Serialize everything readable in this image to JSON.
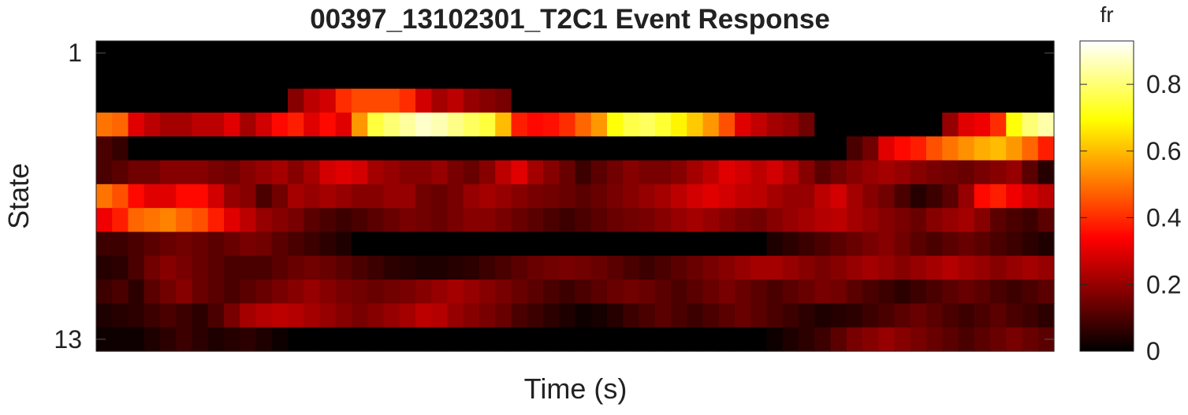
{
  "chart_data": {
    "type": "heatmap",
    "title": "00397_13102301_T2C1 Event Response",
    "xlabel": "Time (s)",
    "ylabel": "State",
    "y_tick_labels": [
      "1",
      "13"
    ],
    "n_rows": 13,
    "n_cols": 60,
    "colormap": "hot",
    "colorbar": {
      "title": "fr",
      "range": [
        0,
        0.93
      ],
      "ticks": [
        0,
        0.2,
        0.4,
        0.6,
        0.8
      ],
      "tick_labels": [
        "0",
        "0.2",
        "0.4",
        "0.6",
        "0.8"
      ]
    },
    "values": [
      [
        0,
        0,
        0,
        0,
        0,
        0,
        0,
        0,
        0,
        0,
        0,
        0,
        0,
        0,
        0,
        0,
        0,
        0,
        0,
        0,
        0,
        0,
        0,
        0,
        0,
        0,
        0,
        0,
        0,
        0,
        0,
        0,
        0,
        0,
        0,
        0,
        0,
        0,
        0,
        0,
        0,
        0,
        0,
        0,
        0,
        0,
        0,
        0,
        0,
        0,
        0,
        0,
        0,
        0,
        0,
        0,
        0,
        0,
        0,
        0
      ],
      [
        0,
        0,
        0,
        0,
        0,
        0,
        0,
        0,
        0,
        0,
        0,
        0,
        0,
        0,
        0,
        0,
        0,
        0,
        0,
        0,
        0,
        0,
        0,
        0,
        0,
        0,
        0,
        0,
        0,
        0,
        0,
        0,
        0,
        0,
        0,
        0,
        0,
        0,
        0,
        0,
        0,
        0,
        0,
        0,
        0,
        0,
        0,
        0,
        0,
        0,
        0,
        0,
        0,
        0,
        0,
        0,
        0,
        0,
        0,
        0
      ],
      [
        0,
        0,
        0,
        0,
        0,
        0,
        0,
        0,
        0,
        0,
        0,
        0,
        0.18,
        0.25,
        0.28,
        0.4,
        0.44,
        0.44,
        0.44,
        0.4,
        0.28,
        0.22,
        0.25,
        0.2,
        0.18,
        0.16,
        0,
        0,
        0,
        0,
        0,
        0,
        0,
        0,
        0,
        0,
        0,
        0,
        0,
        0,
        0,
        0,
        0,
        0,
        0,
        0,
        0,
        0,
        0,
        0,
        0,
        0,
        0,
        0,
        0,
        0,
        0,
        0,
        0,
        0
      ],
      [
        0.5,
        0.48,
        0.3,
        0.25,
        0.22,
        0.22,
        0.25,
        0.25,
        0.3,
        0.22,
        0.28,
        0.35,
        0.38,
        0.3,
        0.35,
        0.3,
        0.55,
        0.75,
        0.8,
        0.84,
        0.88,
        0.86,
        0.82,
        0.78,
        0.75,
        0.6,
        0.38,
        0.35,
        0.36,
        0.4,
        0.48,
        0.55,
        0.7,
        0.76,
        0.78,
        0.74,
        0.68,
        0.62,
        0.55,
        0.45,
        0.3,
        0.26,
        0.22,
        0.2,
        0.15,
        0,
        0,
        0,
        0,
        0,
        0,
        0,
        0,
        0.2,
        0.3,
        0.32,
        0.4,
        0.7,
        0.8,
        0.85
      ],
      [
        0.1,
        0.07,
        0,
        0,
        0,
        0,
        0,
        0,
        0,
        0,
        0,
        0,
        0,
        0,
        0,
        0,
        0,
        0,
        0,
        0,
        0,
        0,
        0,
        0,
        0,
        0,
        0,
        0,
        0,
        0,
        0,
        0,
        0,
        0,
        0,
        0,
        0,
        0,
        0,
        0,
        0,
        0,
        0,
        0,
        0,
        0,
        0,
        0.1,
        0.15,
        0.3,
        0.35,
        0.38,
        0.45,
        0.5,
        0.54,
        0.58,
        0.6,
        0.55,
        0.48,
        0.38
      ],
      [
        0.1,
        0.12,
        0.15,
        0.15,
        0.18,
        0.18,
        0.18,
        0.16,
        0.15,
        0.18,
        0.2,
        0.22,
        0.18,
        0.22,
        0.28,
        0.3,
        0.28,
        0.22,
        0.2,
        0.18,
        0.18,
        0.2,
        0.16,
        0.14,
        0.18,
        0.25,
        0.3,
        0.22,
        0.18,
        0.14,
        0.08,
        0.12,
        0.15,
        0.18,
        0.16,
        0.16,
        0.18,
        0.22,
        0.25,
        0.3,
        0.28,
        0.25,
        0.28,
        0.24,
        0.18,
        0.12,
        0.15,
        0.18,
        0.2,
        0.22,
        0.2,
        0.18,
        0.16,
        0.15,
        0.14,
        0.16,
        0.18,
        0.2,
        0.12,
        0.05
      ],
      [
        0.5,
        0.45,
        0.35,
        0.3,
        0.3,
        0.35,
        0.35,
        0.28,
        0.2,
        0.18,
        0.1,
        0.15,
        0.22,
        0.2,
        0.22,
        0.2,
        0.18,
        0.18,
        0.2,
        0.2,
        0.15,
        0.14,
        0.16,
        0.2,
        0.22,
        0.2,
        0.18,
        0.16,
        0.15,
        0.14,
        0.12,
        0.14,
        0.16,
        0.18,
        0.2,
        0.22,
        0.25,
        0.28,
        0.3,
        0.28,
        0.26,
        0.25,
        0.22,
        0.2,
        0.2,
        0.25,
        0.28,
        0.22,
        0.18,
        0.15,
        0.1,
        0.05,
        0.08,
        0.12,
        0.2,
        0.35,
        0.38,
        0.32,
        0.28,
        0.25
      ],
      [
        0.32,
        0.38,
        0.48,
        0.5,
        0.52,
        0.48,
        0.45,
        0.38,
        0.3,
        0.25,
        0.2,
        0.18,
        0.16,
        0.12,
        0.1,
        0.08,
        0.1,
        0.12,
        0.14,
        0.16,
        0.15,
        0.14,
        0.16,
        0.18,
        0.18,
        0.16,
        0.14,
        0.12,
        0.1,
        0.08,
        0.1,
        0.12,
        0.14,
        0.15,
        0.16,
        0.18,
        0.2,
        0.22,
        0.2,
        0.18,
        0.16,
        0.15,
        0.18,
        0.2,
        0.22,
        0.24,
        0.25,
        0.22,
        0.2,
        0.18,
        0.16,
        0.14,
        0.18,
        0.2,
        0.22,
        0.18,
        0.12,
        0.1,
        0.08,
        0.12
      ],
      [
        0.08,
        0.08,
        0.1,
        0.12,
        0.14,
        0.15,
        0.14,
        0.12,
        0.14,
        0.16,
        0.15,
        0.12,
        0.1,
        0.08,
        0.06,
        0.04,
        0,
        0,
        0,
        0,
        0,
        0,
        0,
        0,
        0,
        0,
        0,
        0,
        0,
        0,
        0,
        0,
        0,
        0,
        0,
        0,
        0,
        0,
        0,
        0,
        0,
        0,
        0.04,
        0.06,
        0.08,
        0.1,
        0.12,
        0.14,
        0.16,
        0.18,
        0.15,
        0.12,
        0.1,
        0.12,
        0.14,
        0.12,
        0.1,
        0.08,
        0.06,
        0.04
      ],
      [
        0.05,
        0.06,
        0.1,
        0.15,
        0.18,
        0.16,
        0.14,
        0.12,
        0.1,
        0.1,
        0.1,
        0.12,
        0.14,
        0.15,
        0.14,
        0.12,
        0.1,
        0.08,
        0.06,
        0.05,
        0.04,
        0.04,
        0.05,
        0.06,
        0.08,
        0.1,
        0.12,
        0.14,
        0.15,
        0.16,
        0.15,
        0.14,
        0.12,
        0.1,
        0.08,
        0.1,
        0.12,
        0.14,
        0.16,
        0.18,
        0.2,
        0.22,
        0.22,
        0.2,
        0.18,
        0.16,
        0.18,
        0.2,
        0.22,
        0.2,
        0.18,
        0.2,
        0.22,
        0.24,
        0.22,
        0.2,
        0.18,
        0.2,
        0.22,
        0.2
      ],
      [
        0.08,
        0.1,
        0.06,
        0.12,
        0.15,
        0.18,
        0.14,
        0.12,
        0.1,
        0.12,
        0.14,
        0.16,
        0.18,
        0.2,
        0.18,
        0.16,
        0.15,
        0.14,
        0.15,
        0.16,
        0.18,
        0.2,
        0.22,
        0.2,
        0.18,
        0.16,
        0.14,
        0.12,
        0.1,
        0.08,
        0.1,
        0.12,
        0.14,
        0.15,
        0.14,
        0.12,
        0.1,
        0.12,
        0.14,
        0.16,
        0.14,
        0.12,
        0.1,
        0.12,
        0.14,
        0.16,
        0.15,
        0.12,
        0.1,
        0.08,
        0.06,
        0.08,
        0.1,
        0.12,
        0.14,
        0.12,
        0.1,
        0.08,
        0.1,
        0.12
      ],
      [
        0.04,
        0.05,
        0.06,
        0.08,
        0.1,
        0.08,
        0.06,
        0.1,
        0.16,
        0.22,
        0.24,
        0.25,
        0.24,
        0.22,
        0.2,
        0.18,
        0.16,
        0.18,
        0.2,
        0.22,
        0.25,
        0.24,
        0.2,
        0.18,
        0.16,
        0.14,
        0.1,
        0.08,
        0.06,
        0.04,
        0.02,
        0.03,
        0.05,
        0.08,
        0.1,
        0.12,
        0.1,
        0.08,
        0.1,
        0.12,
        0.14,
        0.12,
        0.1,
        0.08,
        0.06,
        0.04,
        0.05,
        0.06,
        0.08,
        0.1,
        0.12,
        0.14,
        0.12,
        0.1,
        0.08,
        0.1,
        0.12,
        0.1,
        0.08,
        0.06
      ],
      [
        0.02,
        0.02,
        0.02,
        0.04,
        0.06,
        0.08,
        0.06,
        0.04,
        0.05,
        0.06,
        0.04,
        0.02,
        0,
        0,
        0,
        0,
        0,
        0,
        0,
        0,
        0,
        0,
        0,
        0,
        0,
        0,
        0,
        0,
        0,
        0,
        0,
        0,
        0,
        0,
        0,
        0,
        0,
        0,
        0,
        0,
        0,
        0,
        0.02,
        0.04,
        0.06,
        0.08,
        0.12,
        0.16,
        0.18,
        0.2,
        0.18,
        0.16,
        0.14,
        0.12,
        0.1,
        0.12,
        0.14,
        0.16,
        0.14,
        0.12
      ]
    ]
  }
}
